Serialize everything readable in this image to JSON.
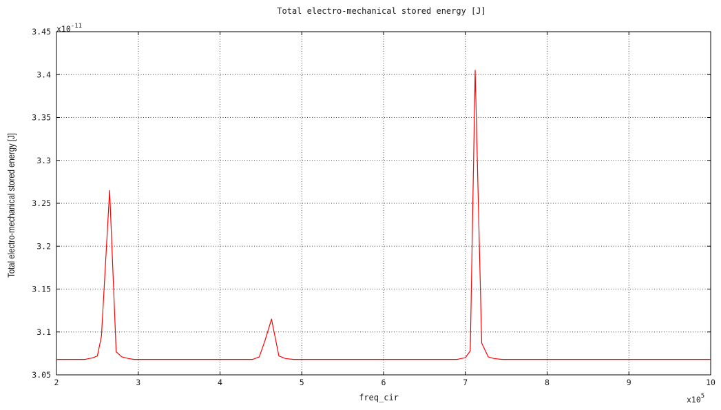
{
  "chart_data": {
    "type": "line",
    "title": "Total electro-mechanical stored energy [J]",
    "xlabel": "freq_cir",
    "ylabel": "Total electro-mechanical stored energy [J]",
    "x_multiplier": {
      "base": "x10",
      "exp": "5"
    },
    "y_multiplier": {
      "base": "x10",
      "exp": "-11"
    },
    "xlim": [
      2,
      10
    ],
    "ylim": [
      3.05,
      3.45
    ],
    "x_ticks": [
      2,
      3,
      4,
      5,
      6,
      7,
      8,
      9,
      10
    ],
    "y_ticks": [
      3.05,
      3.1,
      3.15,
      3.2,
      3.25,
      3.3,
      3.35,
      3.4,
      3.45
    ],
    "x_tick_labels": [
      "2",
      "3",
      "4",
      "5",
      "6",
      "7",
      "8",
      "9",
      "10"
    ],
    "y_tick_labels": [
      "3.05",
      "3.1",
      "3.15",
      "3.2",
      "3.25",
      "3.3",
      "3.35",
      "3.4",
      "3.45"
    ],
    "grid": true,
    "series": [
      {
        "color": "#ff0000",
        "x": [
          2.0,
          2.1,
          2.2,
          2.3,
          2.35,
          2.4,
          2.45,
          2.5,
          2.55,
          2.65,
          2.73,
          2.8,
          2.88,
          2.95,
          3.0,
          3.5,
          4.0,
          4.4,
          4.48,
          4.55,
          4.63,
          4.72,
          4.8,
          4.9,
          5.0,
          6.0,
          6.9,
          7.0,
          7.06,
          7.12,
          7.2,
          7.28,
          7.35,
          7.45,
          7.6,
          8.0,
          9.0,
          10.0
        ],
        "y": [
          3.068,
          3.068,
          3.068,
          3.068,
          3.068,
          3.069,
          3.07,
          3.072,
          3.095,
          3.265,
          3.077,
          3.071,
          3.069,
          3.068,
          3.068,
          3.068,
          3.068,
          3.068,
          3.071,
          3.09,
          3.115,
          3.072,
          3.069,
          3.068,
          3.068,
          3.068,
          3.068,
          3.07,
          3.078,
          3.405,
          3.087,
          3.071,
          3.069,
          3.068,
          3.068,
          3.068,
          3.068,
          3.068
        ]
      }
    ]
  }
}
